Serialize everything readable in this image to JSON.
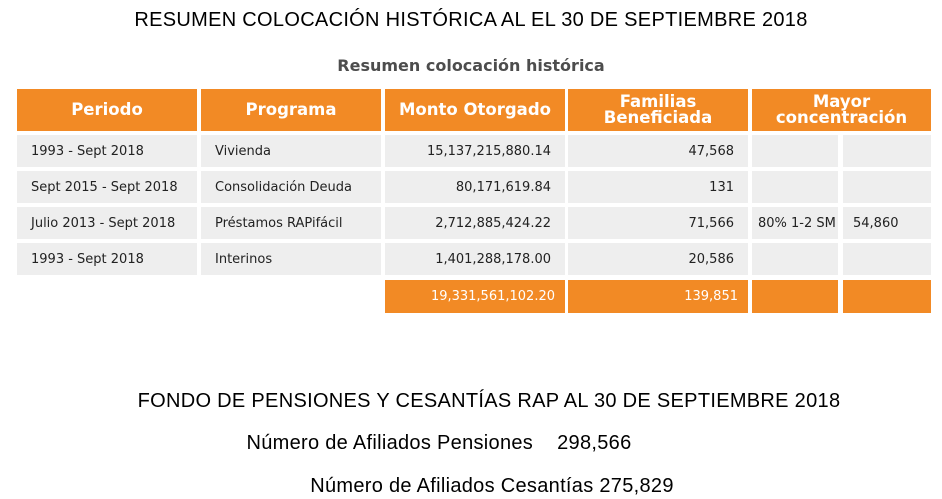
{
  "header": {
    "title": "RESUMEN COLOCACIÓN HISTÓRICA AL EL 30 DE  SEPTIEMBRE 2018",
    "table_caption": "Resumen colocación histórica"
  },
  "table": {
    "columns": [
      "Periodo",
      "Programa",
      "Monto Otorgado",
      "Familias Beneficiada",
      "Mayor concentración"
    ],
    "columns_lines": {
      "familias": [
        "Familias",
        "Beneficiada"
      ],
      "mayor": [
        "Mayor",
        "concentración"
      ]
    },
    "rows": [
      {
        "periodo": "1993 - Sept 2018",
        "programa": "Vivienda",
        "monto": "15,137,215,880.14",
        "familias": "47,568",
        "mayor_a": "",
        "mayor_b": ""
      },
      {
        "periodo": "Sept 2015 - Sept 2018",
        "programa": "Consolidación Deuda",
        "monto": "80,171,619.84",
        "familias": "131",
        "mayor_a": "",
        "mayor_b": ""
      },
      {
        "periodo": "Julio 2013 - Sept 2018",
        "programa": "Préstamos RAPifácil",
        "monto": "2,712,885,424.22",
        "familias": "71,566",
        "mayor_a": "80% 1-2 SM",
        "mayor_b": "54,860"
      },
      {
        "periodo": "1993 - Sept 2018",
        "programa": "Interinos",
        "monto": "1,401,288,178.00",
        "familias": "20,586",
        "mayor_a": "",
        "mayor_b": ""
      }
    ],
    "totals": {
      "monto": "19,331,561,102.20",
      "familias": "139,851"
    }
  },
  "fund": {
    "title": "FONDO DE PENSIONES Y CESANTÍAS RAP AL 30 DE  SEPTIEMBRE 2018",
    "pensiones_label": "Número de Afiliados Pensiones",
    "pensiones_value": "298,566",
    "cesantias_label": "Número de Afiliados Cesantías",
    "cesantias_value": "275,829"
  },
  "colors": {
    "accent": "#f28a25",
    "cell_bg": "#eeeeee"
  }
}
